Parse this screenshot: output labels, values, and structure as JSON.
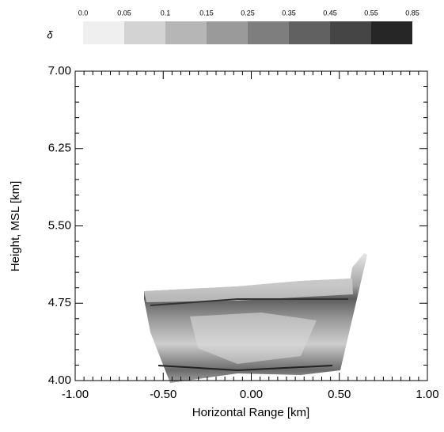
{
  "chart_data": {
    "type": "heatmap",
    "xlabel": "Horizontal Range [km]",
    "ylabel": "Height, MSL [km]",
    "xlim": [
      -1,
      1
    ],
    "ylim": [
      4,
      7
    ],
    "xticks": [
      {
        "value": -1,
        "label": "-1.00"
      },
      {
        "value": -0.5,
        "label": "-0.50"
      },
      {
        "value": 0,
        "label": "0.00"
      },
      {
        "value": 0.5,
        "label": "0.50"
      },
      {
        "value": 1,
        "label": "1.00"
      }
    ],
    "yticks": [
      {
        "value": 4,
        "label": "4.00"
      },
      {
        "value": 4.75,
        "label": "4.75"
      },
      {
        "value": 5.5,
        "label": "5.50"
      },
      {
        "value": 6.25,
        "label": "6.25"
      },
      {
        "value": 7,
        "label": "7.00"
      }
    ],
    "colorbar": {
      "label": "δ",
      "bounds": [
        {
          "value": 0,
          "label": "0.0"
        },
        0.05,
        0.1,
        0.15,
        0.25,
        0.35,
        0.45,
        0.55,
        0.85
      ],
      "colors": [
        "#efefef",
        "#d3d3d3",
        "#b6b6b6",
        "#9a9a9a",
        "#7e7e7e",
        "#616161",
        "#454545",
        "#262626"
      ]
    }
  }
}
